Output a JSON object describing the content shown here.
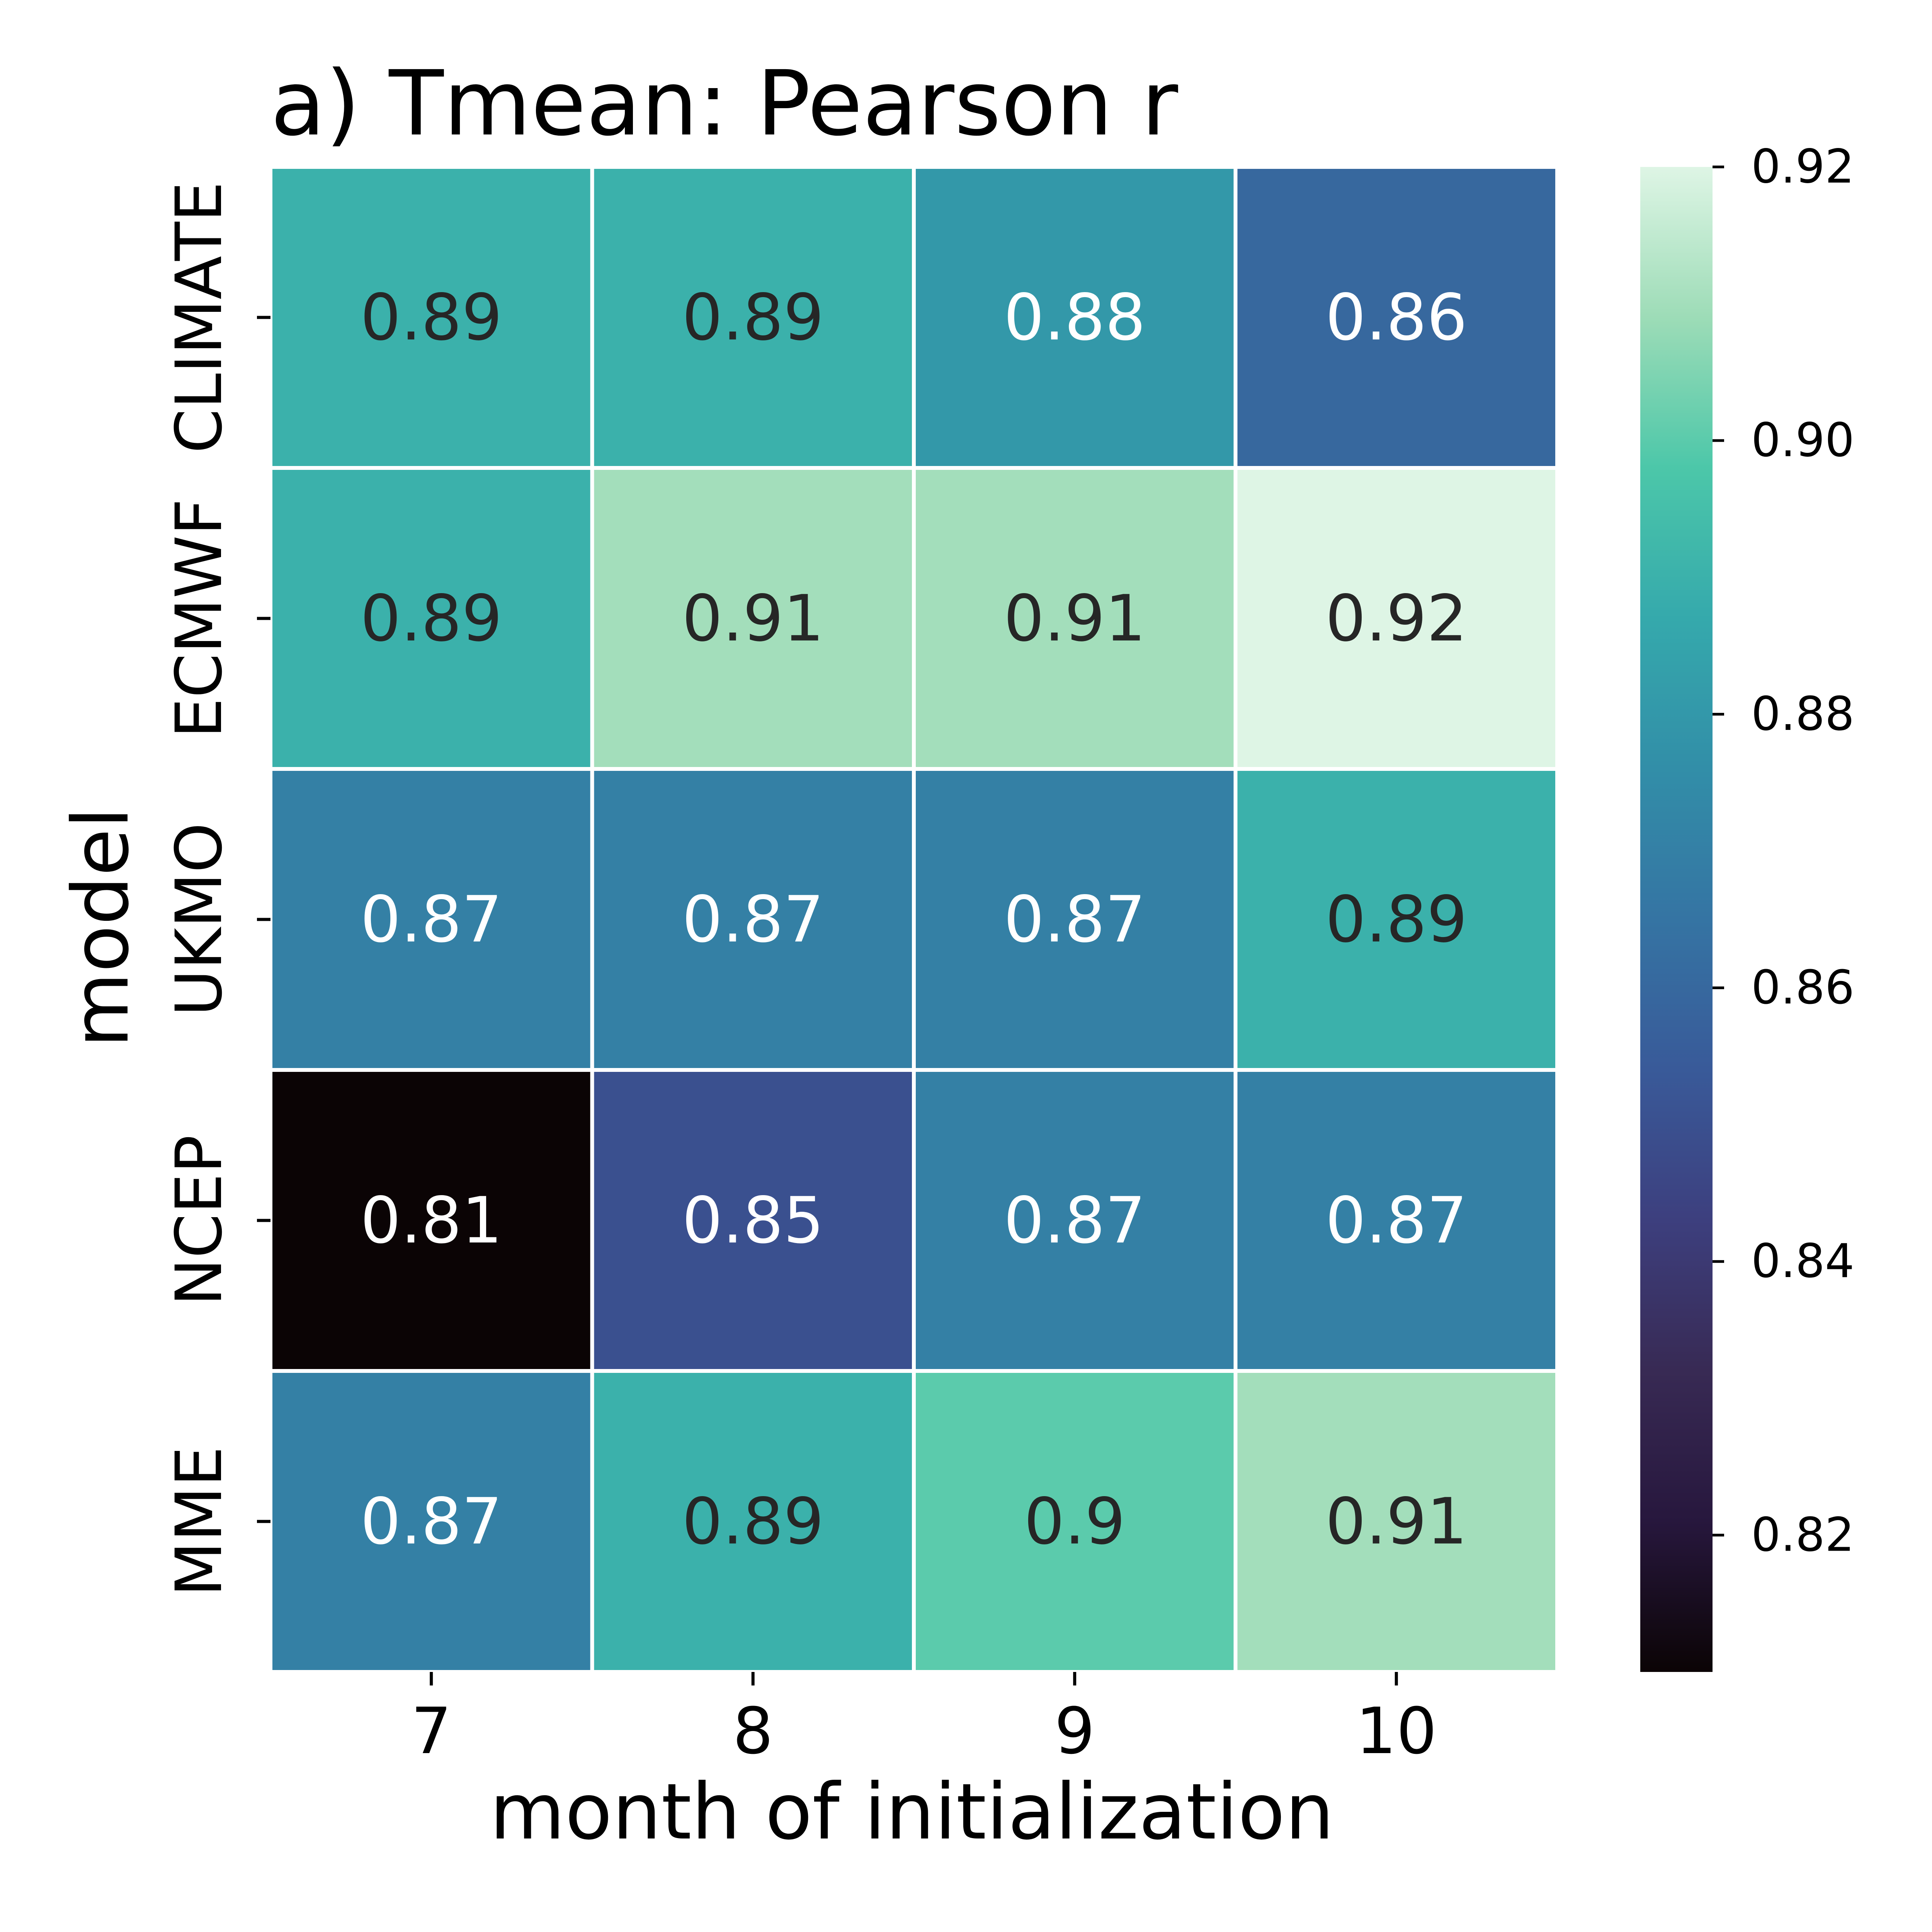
{
  "chart_data": {
    "type": "heatmap",
    "title": "a) Tmean: Pearson r",
    "xlabel": "month of initialization",
    "ylabel": "model",
    "x_categories": [
      "7",
      "8",
      "9",
      "10"
    ],
    "y_categories": [
      "CLIMATE",
      "ECMWF",
      "UKMO",
      "NCEP",
      "MME"
    ],
    "values": [
      [
        0.89,
        0.89,
        0.88,
        0.86
      ],
      [
        0.89,
        0.91,
        0.91,
        0.92
      ],
      [
        0.87,
        0.87,
        0.87,
        0.89
      ],
      [
        0.81,
        0.85,
        0.87,
        0.87
      ],
      [
        0.87,
        0.89,
        0.9,
        0.91
      ]
    ],
    "cell_labels": [
      [
        "0.89",
        "0.89",
        "0.88",
        "0.86"
      ],
      [
        "0.89",
        "0.91",
        "0.91",
        "0.92"
      ],
      [
        "0.87",
        "0.87",
        "0.87",
        "0.89"
      ],
      [
        "0.81",
        "0.85",
        "0.87",
        "0.87"
      ],
      [
        "0.87",
        "0.89",
        "0.9",
        "0.91"
      ]
    ],
    "colorbar": {
      "range": [
        0.81,
        0.92
      ],
      "ticks": [
        0.82,
        0.84,
        0.86,
        0.88,
        0.9,
        0.92
      ],
      "tick_labels": [
        "0.82",
        "0.84",
        "0.86",
        "0.88",
        "0.90",
        "0.92"
      ],
      "colormap": "mako"
    },
    "grid": true,
    "cell_border_color": "#ffffff"
  }
}
